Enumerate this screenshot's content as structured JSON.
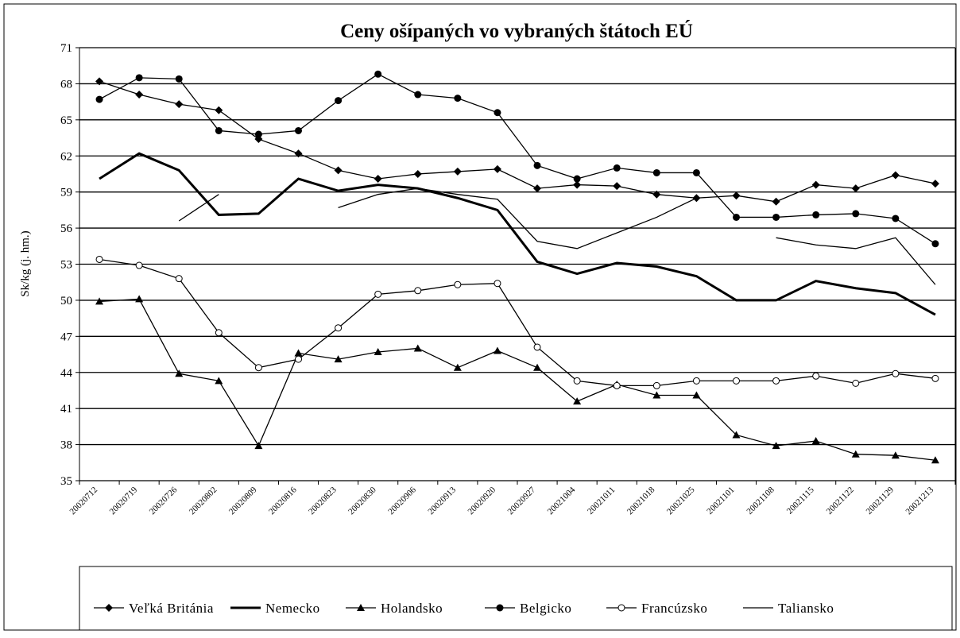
{
  "chart_data": {
    "type": "line",
    "title": "Ceny ošípaných vo vybraných štátoch  EÚ",
    "y_label": "Sk/kg (j. hm.)",
    "categories": [
      "20020712",
      "20020719",
      "20020726",
      "20020802",
      "20020809",
      "20020816",
      "20020823",
      "20020830",
      "20020906",
      "20020913",
      "20020920",
      "20020927",
      "20021004",
      "20021011",
      "20021018",
      "20021025",
      "20021101",
      "20021108",
      "20021115",
      "20021122",
      "20021129",
      "20021213"
    ],
    "series": [
      {
        "name": "Veľká Británia",
        "color": "#000000",
        "marker": "diamond",
        "values": [
          68.2,
          67.1,
          66.3,
          65.8,
          63.4,
          62.2,
          60.8,
          60.1,
          60.5,
          60.7,
          60.9,
          59.3,
          59.6,
          59.5,
          58.8,
          58.5,
          58.7,
          58.2,
          59.6,
          59.3,
          60.4,
          59.7
        ]
      },
      {
        "name": "Nemecko",
        "color": "#000000",
        "marker": "none",
        "values": [
          60.1,
          62.2,
          60.8,
          57.1,
          57.2,
          60.1,
          59.1,
          59.6,
          59.3,
          58.5,
          57.5,
          53.2,
          52.2,
          53.1,
          52.8,
          52.0,
          50.0,
          50.0,
          51.6,
          51.0,
          50.6,
          48.8
        ]
      },
      {
        "name": "Holandsko",
        "color": "#000000",
        "marker": "triangle",
        "values": [
          49.9,
          50.1,
          43.9,
          43.3,
          37.9,
          45.6,
          45.1,
          45.7,
          46.0,
          44.4,
          45.8,
          44.4,
          41.6,
          43.0,
          42.1,
          42.1,
          38.8,
          37.9,
          38.3,
          37.2,
          37.1,
          36.7
        ]
      },
      {
        "name": "Belgicko",
        "color": "#000000",
        "marker": "circle",
        "values": [
          66.7,
          68.5,
          68.4,
          64.1,
          63.8,
          64.1,
          66.6,
          68.8,
          67.1,
          66.8,
          65.6,
          61.2,
          60.1,
          61.0,
          60.6,
          60.6,
          56.9,
          56.9,
          57.1,
          57.2,
          56.8,
          54.7
        ]
      },
      {
        "name": "Francúzsko",
        "color": "#000000",
        "marker": "open-circle",
        "values": [
          53.4,
          52.9,
          51.8,
          47.3,
          44.4,
          45.1,
          47.7,
          50.5,
          50.8,
          51.3,
          51.4,
          46.1,
          43.3,
          42.9,
          42.9,
          43.3,
          43.3,
          43.3,
          43.7,
          43.1,
          43.9,
          43.5
        ]
      },
      {
        "name": "Taliansko",
        "color": "#000000",
        "marker": "none",
        "values": [
          null,
          null,
          56.6,
          58.8,
          null,
          null,
          57.7,
          58.8,
          59.3,
          58.8,
          58.4,
          54.9,
          54.3,
          55.6,
          56.9,
          58.5,
          null,
          55.2,
          54.6,
          54.3,
          55.2,
          51.3
        ]
      }
    ],
    "ylim": [
      35,
      71
    ],
    "yticks": [
      35,
      38,
      41,
      44,
      47,
      50,
      53,
      56,
      59,
      62,
      65,
      68,
      71
    ],
    "grid": true,
    "legend": "bottom"
  }
}
